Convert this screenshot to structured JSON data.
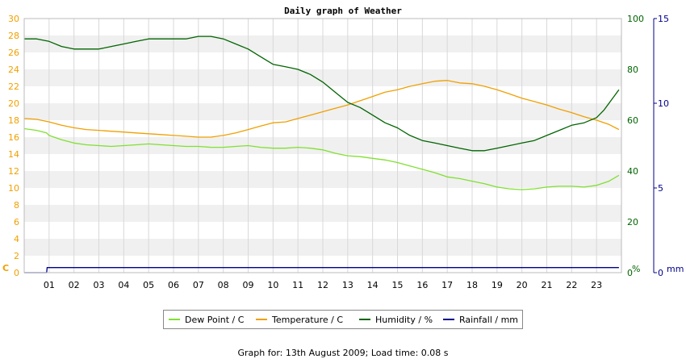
{
  "chart_data": {
    "type": "line",
    "title": "Daily graph of Weather",
    "x_ticks": [
      "01",
      "02",
      "03",
      "04",
      "05",
      "06",
      "07",
      "08",
      "09",
      "10",
      "11",
      "12",
      "13",
      "14",
      "15",
      "16",
      "17",
      "18",
      "19",
      "20",
      "21",
      "22",
      "23"
    ],
    "x_range": [
      0,
      24
    ],
    "y_left": {
      "label": "C",
      "range": [
        0,
        30
      ],
      "ticks": [
        0,
        2,
        4,
        6,
        8,
        10,
        12,
        14,
        16,
        18,
        20,
        22,
        24,
        26,
        28,
        30
      ],
      "color": "#f0a000"
    },
    "y_right1": {
      "label": "%",
      "range": [
        0,
        100
      ],
      "ticks": [
        0,
        20,
        40,
        60,
        80,
        100
      ],
      "color": "#006400"
    },
    "y_right2": {
      "label": "mm",
      "range": [
        0,
        15
      ],
      "ticks": [
        0,
        5,
        10,
        15
      ],
      "color": "#00008b"
    },
    "grid": true,
    "series": [
      {
        "name": "Dew Point / C",
        "color": "#80e030",
        "axis": "left",
        "x": [
          0,
          0.5,
          0.9,
          1,
          1.5,
          2,
          2.5,
          3,
          3.5,
          4,
          4.5,
          5,
          5.5,
          6,
          6.5,
          7,
          7.5,
          8,
          8.5,
          9,
          9.5,
          10,
          10.5,
          11,
          11.5,
          12,
          12.5,
          13,
          13.5,
          14,
          14.5,
          15,
          15.5,
          16,
          16.5,
          17,
          17.5,
          18,
          18.5,
          19,
          19.5,
          20,
          20.5,
          21,
          21.5,
          22,
          22.5,
          23,
          23.5,
          23.9
        ],
        "values": [
          17,
          16.8,
          16.5,
          16.2,
          15.7,
          15.3,
          15.1,
          15,
          14.9,
          15,
          15.1,
          15.2,
          15.1,
          15,
          14.9,
          14.9,
          14.8,
          14.8,
          14.9,
          15,
          14.8,
          14.7,
          14.7,
          14.8,
          14.7,
          14.5,
          14.1,
          13.8,
          13.7,
          13.5,
          13.3,
          13.0,
          12.6,
          12.2,
          11.8,
          11.3,
          11.1,
          10.8,
          10.5,
          10.1,
          9.9,
          9.8,
          9.9,
          10.1,
          10.2,
          10.2,
          10.1,
          10.3,
          10.8,
          11.5
        ]
      },
      {
        "name": "Temperature / C",
        "color": "#f0a000",
        "axis": "left",
        "x": [
          0,
          0.5,
          1,
          1.5,
          2,
          2.5,
          3,
          3.5,
          4,
          4.5,
          5,
          5.5,
          6,
          6.5,
          7,
          7.5,
          8,
          8.5,
          9,
          9.5,
          10,
          10.5,
          11,
          11.5,
          12,
          12.5,
          13,
          13.5,
          14,
          14.5,
          15,
          15.5,
          16,
          16.5,
          17,
          17.5,
          18,
          18.5,
          19,
          19.5,
          20,
          20.5,
          21,
          21.5,
          22,
          22.5,
          23,
          23.5,
          23.9
        ],
        "values": [
          18.2,
          18.1,
          17.8,
          17.4,
          17.1,
          16.9,
          16.8,
          16.7,
          16.6,
          16.5,
          16.4,
          16.3,
          16.2,
          16.1,
          16.0,
          16.0,
          16.2,
          16.5,
          16.9,
          17.3,
          17.7,
          17.8,
          18.2,
          18.6,
          19.0,
          19.4,
          19.8,
          20.3,
          20.8,
          21.3,
          21.6,
          22.0,
          22.3,
          22.6,
          22.7,
          22.4,
          22.3,
          22.0,
          21.6,
          21.1,
          20.6,
          20.2,
          19.8,
          19.3,
          18.9,
          18.4,
          18.0,
          17.5,
          16.9
        ]
      },
      {
        "name": "Humidity / %",
        "color": "#006400",
        "axis": "right1",
        "x": [
          0,
          0.5,
          1,
          1.5,
          2,
          2.5,
          3,
          3.5,
          4,
          4.5,
          5,
          5.5,
          6,
          6.5,
          7,
          7.5,
          8,
          8.5,
          9,
          9.5,
          10,
          10.5,
          11,
          11.5,
          12,
          12.5,
          13,
          13.5,
          14,
          14.5,
          15,
          15.5,
          16,
          16.5,
          17,
          17.5,
          18,
          18.5,
          19,
          19.5,
          20,
          20.5,
          21,
          21.5,
          22,
          22.5,
          23,
          23.3,
          23.6,
          23.9
        ],
        "values": [
          92,
          92,
          91,
          89,
          88,
          88,
          88,
          89,
          90,
          91,
          92,
          92,
          92,
          92,
          93,
          93,
          92,
          90,
          88,
          85,
          82,
          81,
          80,
          78,
          75,
          71,
          67,
          65,
          62,
          59,
          57,
          54,
          52,
          51,
          50,
          49,
          48,
          48,
          49,
          50,
          51,
          52,
          54,
          56,
          58,
          59,
          61,
          64,
          68,
          72
        ]
      },
      {
        "name": "Rainfall / mm",
        "color": "#00008b",
        "axis": "right2",
        "x": [
          0,
          0.9,
          0.92,
          23.9
        ],
        "values": [
          0,
          0,
          0.3,
          0.3
        ]
      }
    ]
  },
  "footer": "Graph for: 13th August 2009; Load time: 0.08 s"
}
